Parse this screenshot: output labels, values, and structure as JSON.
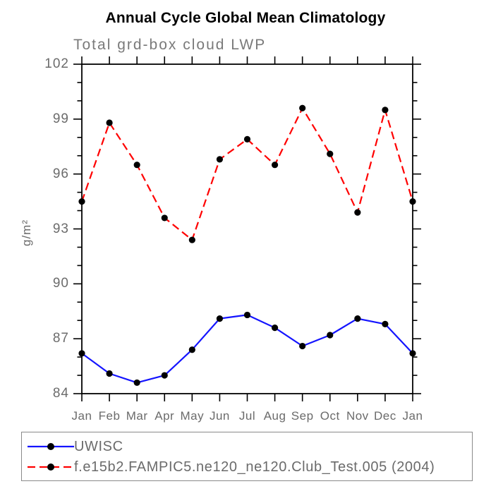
{
  "page": {
    "title": "Annual Cycle Global Mean Climatology"
  },
  "chart_data": {
    "type": "line",
    "title": "Annual Cycle Global Mean Climatology",
    "subtitle": "Total grd-box cloud LWP",
    "ylabel": "g/m²",
    "xlabel": "",
    "ylim": [
      84,
      102
    ],
    "ytick_major_step": 3,
    "ytick_minor_step": 1,
    "yticks_major": [
      84,
      87,
      90,
      93,
      96,
      99,
      102
    ],
    "grid": "off",
    "legend_position": "bottom-left",
    "categories": [
      "Jan",
      "Feb",
      "Mar",
      "Apr",
      "May",
      "Jun",
      "Jul",
      "Aug",
      "Sep",
      "Oct",
      "Nov",
      "Dec",
      "Jan"
    ],
    "series": [
      {
        "name": "UWISC",
        "color": "#1414ff",
        "line_style": "solid",
        "marker": "black-dot",
        "values": [
          86.2,
          85.1,
          84.6,
          85.0,
          86.4,
          88.1,
          88.3,
          87.6,
          86.6,
          87.2,
          88.1,
          87.8,
          86.2
        ]
      },
      {
        "name": "f.e15b2.FAMPIC5.ne120_ne120.Club_Test.005 (2004)",
        "color": "#ff0000",
        "line_style": "dashed",
        "marker": "black-dot",
        "values": [
          94.5,
          98.8,
          96.5,
          93.6,
          92.4,
          96.8,
          97.9,
          96.5,
          99.6,
          97.1,
          93.9,
          99.5,
          94.5
        ]
      }
    ],
    "frame_color": "#000000",
    "marker_color": "#000000",
    "text_color": "#6b6b6b"
  }
}
